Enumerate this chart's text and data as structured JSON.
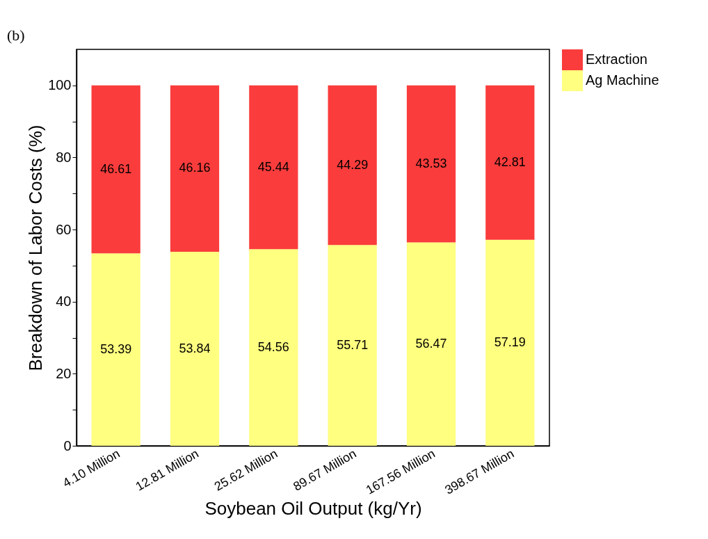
{
  "chart_data": {
    "type": "bar",
    "stacked": true,
    "xlabel": "Soybean Oil Output (kg/Yr)",
    "ylabel": "Breakdown of Labor Costs (%)",
    "annotations": [
      "(b)"
    ],
    "categories": [
      "4.10 Million",
      "12.81 Million",
      "25.62 Million",
      "89.67 Million",
      "167.56 Million",
      "398.67 Million"
    ],
    "series": [
      {
        "name": "Ag Machine",
        "color": "#ffff80",
        "values": [
          53.39,
          53.84,
          54.56,
          55.71,
          56.47,
          57.19
        ]
      },
      {
        "name": "Extraction",
        "color": "#fa3c3c",
        "values": [
          46.61,
          46.16,
          45.44,
          44.29,
          43.53,
          42.81
        ]
      }
    ],
    "ylim": [
      0,
      110
    ],
    "yticks": [
      0,
      {
        "value": 10,
        "label": null
      },
      20,
      {
        "value": 30,
        "label": null
      },
      40,
      {
        "value": 50,
        "label": null
      },
      60,
      {
        "value": 70,
        "label": null
      },
      80,
      {
        "value": 90,
        "label": null
      },
      100
    ],
    "data_labels": true,
    "legend": "right",
    "grid": false
  }
}
